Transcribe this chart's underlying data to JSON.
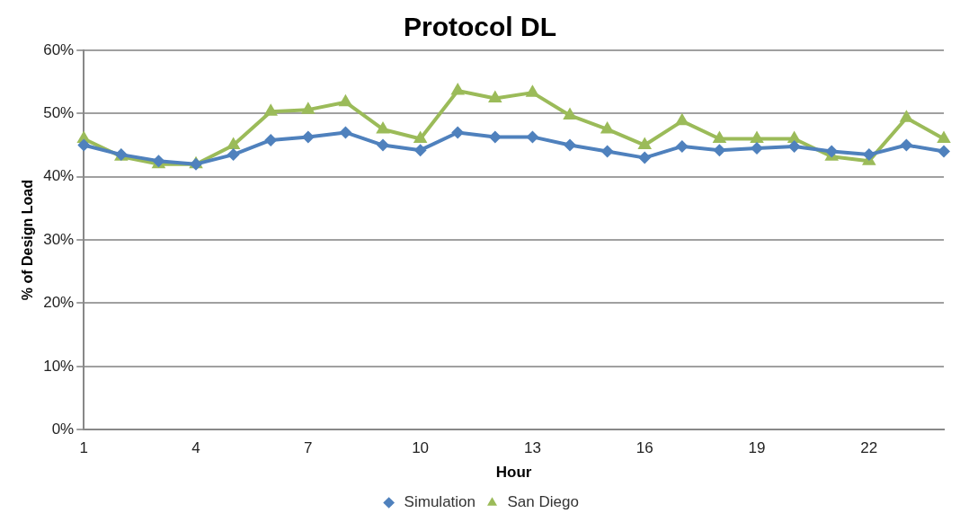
{
  "chart_data": {
    "type": "line",
    "title": "Protocol DL",
    "xlabel": "Hour",
    "ylabel": "% of Design Load",
    "categories": [
      "1",
      null,
      null,
      "4",
      null,
      null,
      "7",
      null,
      null,
      "10",
      null,
      null,
      "13",
      null,
      null,
      "16",
      null,
      null,
      "19",
      null,
      null,
      "22",
      null,
      null
    ],
    "series": [
      {
        "name": "Simulation",
        "color": "#4f81bd",
        "marker": "diamond",
        "values": [
          45,
          43.5,
          42.5,
          42,
          43.5,
          45.8,
          46.3,
          47,
          45,
          44.2,
          47,
          46.3,
          46.3,
          45,
          44,
          43,
          44.8,
          44.2,
          44.5,
          44.8,
          44,
          43.5,
          45,
          44
        ]
      },
      {
        "name": "San Diego",
        "color": "#9bbb59",
        "marker": "triangle",
        "values": [
          46,
          43.2,
          42,
          42,
          45,
          50.3,
          50.6,
          51.8,
          47.5,
          46,
          53.6,
          52.4,
          53.3,
          49.7,
          47.5,
          45,
          48.8,
          46,
          46,
          46,
          43.2,
          42.5,
          49.3,
          46
        ]
      }
    ],
    "ylim": [
      0,
      60
    ],
    "yticks": [
      {
        "value": 0,
        "label": "0%"
      },
      {
        "value": 10,
        "label": "10%"
      },
      {
        "value": 20,
        "label": "20%"
      },
      {
        "value": 30,
        "label": "30%"
      },
      {
        "value": 40,
        "label": "40%"
      },
      {
        "value": 50,
        "label": "50%"
      },
      {
        "value": 60,
        "label": "60%"
      }
    ],
    "grid": "y",
    "legend": "bottom",
    "line_style": "solid"
  }
}
